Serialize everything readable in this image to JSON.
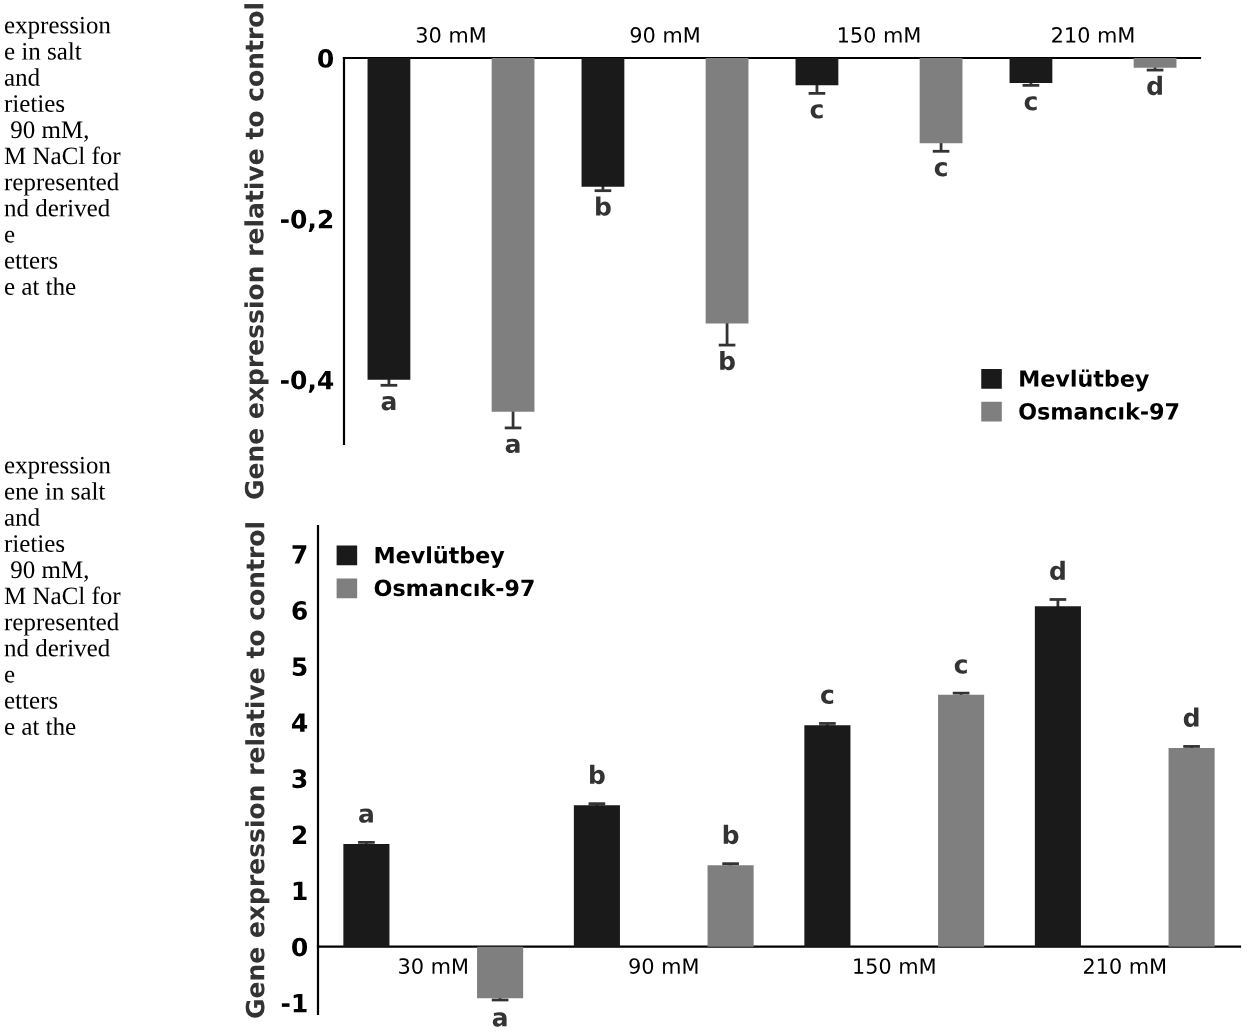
{
  "chart_data": [
    {
      "type": "bar",
      "ylabel": "Gene expression relative to control",
      "categories": [
        "30 mM",
        "90 mM",
        "150 mM",
        "210 mM"
      ],
      "series": [
        {
          "name": "Mevlütbey",
          "color": "#1a1a1a",
          "values": [
            -0.4,
            -0.16,
            -0.034,
            -0.031
          ],
          "errors": [
            0.007,
            0.005,
            0.01,
            0.003
          ]
        },
        {
          "name": "Osmancık-97",
          "color": "#7f7f7f",
          "values": [
            -0.44,
            -0.33,
            -0.106,
            -0.012
          ],
          "errors": [
            0.02,
            0.027,
            0.01,
            0.003
          ]
        }
      ],
      "ylim": [
        -0.48,
        0
      ],
      "yticks": [
        0,
        {
          "value": -0.2,
          "label": "-0,2"
        },
        {
          "value": -0.4,
          "label": "-0,4"
        }
      ],
      "grid": false,
      "legend": "bottom right",
      "annotations": [
        "expression\ne in salt\nand\nrieties\n 90 mM,\nM NaCl for\nrepresented\nnd derived\ne\netters\ne at the",
        "a",
        "a",
        "b",
        "b",
        "c",
        "c",
        "c",
        "d"
      ]
    },
    {
      "type": "bar",
      "ylabel": "Gene expression relative to control",
      "categories": [
        "30 mM",
        "90 mM",
        "150 mM",
        "210 mM"
      ],
      "series": [
        {
          "name": "Mevlütbey",
          "color": "#1a1a1a",
          "values": [
            1.83,
            2.52,
            3.95,
            6.07
          ],
          "errors": [
            0.03,
            0.03,
            0.03,
            0.12
          ]
        },
        {
          "name": "Osmancık-97",
          "color": "#7f7f7f",
          "values": [
            -0.92,
            1.45,
            4.49,
            3.54
          ],
          "errors": [
            0.03,
            0.03,
            0.03,
            0.03
          ]
        }
      ],
      "ylim": [
        -1.2,
        7.5
      ],
      "yticks": [
        -1,
        0,
        1,
        2,
        3,
        4,
        5,
        6,
        7
      ],
      "grid": false,
      "legend": "top left",
      "annotations": [
        "expression\nene in salt\nand\nrieties\n 90 mM,\nM NaCl for\nrepresented\nnd derived\ne\netters\ne at the",
        "a",
        "a",
        "b",
        "b",
        "c",
        "c",
        "d",
        "d"
      ]
    }
  ]
}
